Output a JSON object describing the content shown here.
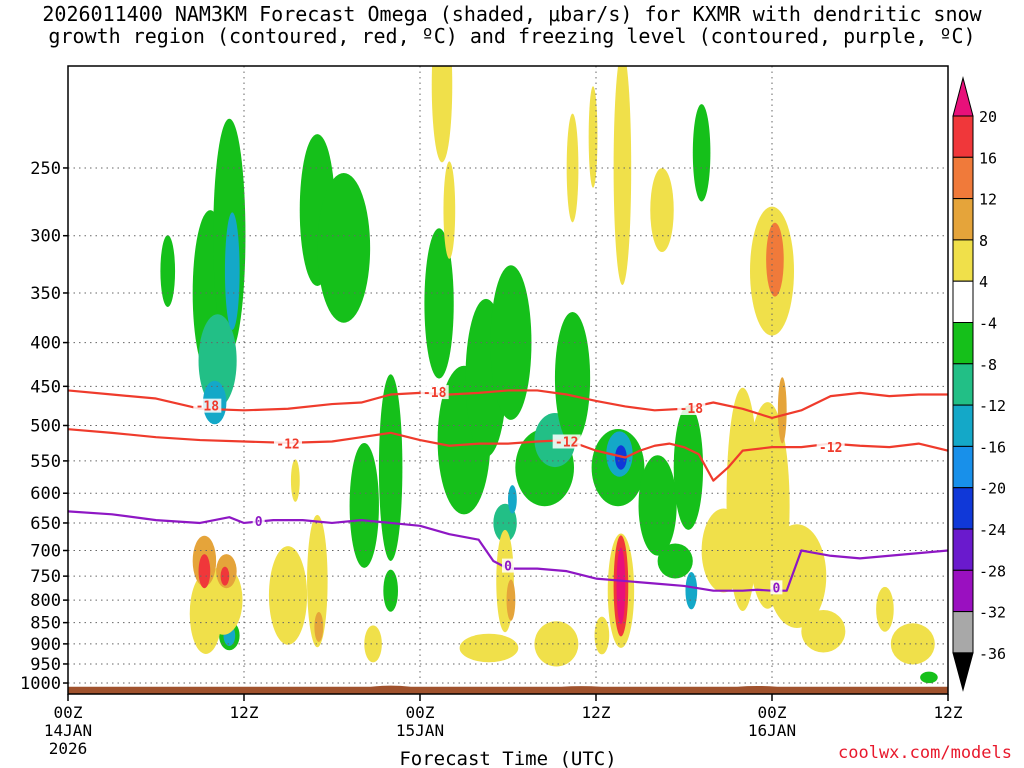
{
  "title": {
    "line1": "2026011400 NAM3KM Forecast Omega (shaded, μbar/s) for KXMR with dendritic snow",
    "line2": "growth region (contoured, red, ºC) and freezing level (contoured, purple, ºC)"
  },
  "credit": "coolwx.com/models",
  "colors": {
    "frame": "#000000",
    "grid": "#666666",
    "terrain": "#a0522d",
    "contour_red": "#ef3b2c",
    "contour_purple": "#8e17c4"
  },
  "chart_data": {
    "type": "heatmap",
    "title": "2026011400 NAM3KM Forecast Omega (shaded, μbar/s) for KXMR with dendritic snow growth region (contoured, red, ºC) and freezing level (contoured, purple, ºC)",
    "xlabel": "Forecast Time (UTC)",
    "ylabel": "",
    "xlim": [
      0,
      60
    ],
    "ylim": [
      1030,
      190
    ],
    "x_ticks": [
      {
        "hour": 0,
        "label": "00Z",
        "date": "14JAN",
        "year": "2026"
      },
      {
        "hour": 12,
        "label": "12Z",
        "date": "",
        "year": ""
      },
      {
        "hour": 24,
        "label": "00Z",
        "date": "15JAN",
        "year": ""
      },
      {
        "hour": 36,
        "label": "12Z",
        "date": "",
        "year": ""
      },
      {
        "hour": 48,
        "label": "00Z",
        "date": "16JAN",
        "year": ""
      },
      {
        "hour": 60,
        "label": "12Z",
        "date": "",
        "year": ""
      }
    ],
    "y_ticks": [
      250,
      300,
      350,
      400,
      450,
      500,
      550,
      600,
      650,
      700,
      750,
      800,
      850,
      900,
      950,
      1000
    ],
    "colorbar": {
      "labels": [
        "20",
        "16",
        "12",
        "8",
        "4",
        "-4",
        "-8",
        "-12",
        "-16",
        "-20",
        "-24",
        "-28",
        "-32",
        "-36"
      ],
      "top_arrow": "#e8107a",
      "bottom_arrow": "#000000",
      "bins": [
        "#f0373a",
        "#f07a3a",
        "#e5a43a",
        "#f0e04a",
        "#ffffff",
        "#15c01a",
        "#22bf86",
        "#14a8c8",
        "#1890ea",
        "#1038d8",
        "#6a1acd",
        "#9a10c0",
        "#a8a8a8"
      ]
    },
    "omega_blobs": [
      {
        "x": 6.8,
        "p": 330,
        "rx": 0.5,
        "ry": 60,
        "level": "-4"
      },
      {
        "x": 9.7,
        "p": 350,
        "rx": 1.2,
        "ry": 150,
        "level": "-4"
      },
      {
        "x": 11.0,
        "p": 300,
        "rx": 1.1,
        "ry": 180,
        "level": "-4"
      },
      {
        "x": 10.2,
        "p": 420,
        "rx": 1.3,
        "ry": 100,
        "level": "-8"
      },
      {
        "x": 11.2,
        "p": 330,
        "rx": 0.5,
        "ry": 100,
        "level": "-12"
      },
      {
        "x": 10.0,
        "p": 470,
        "rx": 0.8,
        "ry": 50,
        "level": "-12"
      },
      {
        "x": 17.0,
        "p": 280,
        "rx": 1.2,
        "ry": 110,
        "level": "-4"
      },
      {
        "x": 18.8,
        "p": 310,
        "rx": 1.8,
        "ry": 120,
        "level": "-4"
      },
      {
        "x": 20.2,
        "p": 620,
        "rx": 1.0,
        "ry": 200,
        "level": "-4"
      },
      {
        "x": 22.0,
        "p": 560,
        "rx": 0.8,
        "ry": 270,
        "level": "-4"
      },
      {
        "x": 25.3,
        "p": 360,
        "rx": 1.0,
        "ry": 140,
        "level": "-4"
      },
      {
        "x": 27.0,
        "p": 520,
        "rx": 1.8,
        "ry": 200,
        "level": "-4"
      },
      {
        "x": 28.5,
        "p": 440,
        "rx": 1.4,
        "ry": 180,
        "level": "-4"
      },
      {
        "x": 30.2,
        "p": 400,
        "rx": 1.4,
        "ry": 160,
        "level": "-4"
      },
      {
        "x": 32.5,
        "p": 560,
        "rx": 2.0,
        "ry": 110,
        "level": "-4"
      },
      {
        "x": 33.2,
        "p": 520,
        "rx": 1.4,
        "ry": 70,
        "level": "-8"
      },
      {
        "x": 34.4,
        "p": 440,
        "rx": 1.2,
        "ry": 150,
        "level": "-4"
      },
      {
        "x": 29.8,
        "p": 650,
        "rx": 0.8,
        "ry": 60,
        "level": "-8"
      },
      {
        "x": 30.3,
        "p": 610,
        "rx": 0.3,
        "ry": 40,
        "level": "-12"
      },
      {
        "x": 37.5,
        "p": 560,
        "rx": 1.8,
        "ry": 110,
        "level": "-4"
      },
      {
        "x": 37.6,
        "p": 540,
        "rx": 0.9,
        "ry": 60,
        "level": "-12"
      },
      {
        "x": 37.7,
        "p": 545,
        "rx": 0.4,
        "ry": 30,
        "level": "-20"
      },
      {
        "x": 40.2,
        "p": 620,
        "rx": 1.3,
        "ry": 160,
        "level": "-4"
      },
      {
        "x": 42.3,
        "p": 560,
        "rx": 1.0,
        "ry": 180,
        "level": "-4"
      },
      {
        "x": 42.5,
        "p": 780,
        "rx": 0.4,
        "ry": 70,
        "level": "-12"
      },
      {
        "x": 41.4,
        "p": 720,
        "rx": 1.2,
        "ry": 60,
        "level": "-4"
      },
      {
        "x": 43.2,
        "p": 240,
        "rx": 0.6,
        "ry": 60,
        "level": "-4"
      },
      {
        "x": 15.0,
        "p": 770,
        "rx": 0.8,
        "ry": 100,
        "level": "-4"
      },
      {
        "x": 15.0,
        "p": 770,
        "rx": 0.4,
        "ry": 60,
        "level": "-12"
      },
      {
        "x": 11.0,
        "p": 880,
        "rx": 0.7,
        "ry": 60,
        "level": "-4"
      },
      {
        "x": 11.0,
        "p": 880,
        "rx": 0.4,
        "ry": 40,
        "level": "-12"
      },
      {
        "x": 58.7,
        "p": 985,
        "rx": 0.6,
        "ry": 20,
        "level": "-4"
      },
      {
        "x": 22.0,
        "p": 780,
        "rx": 0.5,
        "ry": 80,
        "level": "-4"
      },
      {
        "x": 9.4,
        "p": 830,
        "rx": 1.1,
        "ry": 170,
        "level": "4"
      },
      {
        "x": 10.6,
        "p": 800,
        "rx": 1.3,
        "ry": 140,
        "level": "4"
      },
      {
        "x": 9.3,
        "p": 720,
        "rx": 0.8,
        "ry": 90,
        "level": "8"
      },
      {
        "x": 10.8,
        "p": 740,
        "rx": 0.7,
        "ry": 60,
        "level": "8"
      },
      {
        "x": 9.3,
        "p": 740,
        "rx": 0.4,
        "ry": 60,
        "level": "16"
      },
      {
        "x": 10.7,
        "p": 750,
        "rx": 0.3,
        "ry": 30,
        "level": "16"
      },
      {
        "x": 15.0,
        "p": 790,
        "rx": 1.3,
        "ry": 200,
        "level": "4"
      },
      {
        "x": 17.0,
        "p": 760,
        "rx": 0.7,
        "ry": 260,
        "level": "4"
      },
      {
        "x": 17.1,
        "p": 860,
        "rx": 0.3,
        "ry": 60,
        "level": "8"
      },
      {
        "x": 15.5,
        "p": 580,
        "rx": 0.3,
        "ry": 60,
        "level": "4"
      },
      {
        "x": 20.8,
        "p": 900,
        "rx": 0.6,
        "ry": 80,
        "level": "4"
      },
      {
        "x": 25.5,
        "p": 200,
        "rx": 0.7,
        "ry": 80,
        "level": "4"
      },
      {
        "x": 26.0,
        "p": 280,
        "rx": 0.4,
        "ry": 70,
        "level": "4"
      },
      {
        "x": 28.7,
        "p": 910,
        "rx": 2.0,
        "ry": 60,
        "level": "4"
      },
      {
        "x": 29.8,
        "p": 760,
        "rx": 0.6,
        "ry": 200,
        "level": "4"
      },
      {
        "x": 30.2,
        "p": 800,
        "rx": 0.3,
        "ry": 80,
        "level": "8"
      },
      {
        "x": 33.3,
        "p": 900,
        "rx": 1.5,
        "ry": 100,
        "level": "4"
      },
      {
        "x": 35.8,
        "p": 230,
        "rx": 0.3,
        "ry": 60,
        "level": "4"
      },
      {
        "x": 36.4,
        "p": 880,
        "rx": 0.5,
        "ry": 80,
        "level": "4"
      },
      {
        "x": 37.7,
        "p": 780,
        "rx": 0.9,
        "ry": 230,
        "level": "4"
      },
      {
        "x": 37.7,
        "p": 770,
        "rx": 0.5,
        "ry": 200,
        "level": "16"
      },
      {
        "x": 37.7,
        "p": 770,
        "rx": 0.3,
        "ry": 150,
        "level": "20"
      },
      {
        "x": 37.8,
        "p": 250,
        "rx": 0.6,
        "ry": 150,
        "level": "4"
      },
      {
        "x": 34.4,
        "p": 250,
        "rx": 0.4,
        "ry": 70,
        "level": "4"
      },
      {
        "x": 40.5,
        "p": 280,
        "rx": 0.8,
        "ry": 60,
        "level": "4"
      },
      {
        "x": 44.7,
        "p": 700,
        "rx": 1.5,
        "ry": 150,
        "level": "4"
      },
      {
        "x": 46.0,
        "p": 610,
        "rx": 1.1,
        "ry": 350,
        "level": "4"
      },
      {
        "x": 47.7,
        "p": 620,
        "rx": 1.5,
        "ry": 330,
        "level": "4"
      },
      {
        "x": 48.0,
        "p": 330,
        "rx": 1.5,
        "ry": 110,
        "level": "4"
      },
      {
        "x": 48.2,
        "p": 320,
        "rx": 0.6,
        "ry": 60,
        "level": "12"
      },
      {
        "x": 49.7,
        "p": 750,
        "rx": 2.0,
        "ry": 200,
        "level": "4"
      },
      {
        "x": 51.5,
        "p": 870,
        "rx": 1.5,
        "ry": 90,
        "level": "4"
      },
      {
        "x": 48.7,
        "p": 480,
        "rx": 0.3,
        "ry": 80,
        "level": "8"
      },
      {
        "x": 57.6,
        "p": 900,
        "rx": 1.5,
        "ry": 90,
        "level": "4"
      },
      {
        "x": 55.7,
        "p": 820,
        "rx": 0.6,
        "ry": 90,
        "level": "4"
      }
    ],
    "contours": [
      {
        "name": "-18C",
        "label": "-18",
        "color": "#ef3b2c",
        "x": [
          0,
          3,
          6,
          9,
          12,
          15,
          18,
          20,
          22,
          24,
          26,
          28,
          30,
          32,
          34,
          36,
          38,
          40,
          42,
          44,
          46,
          48,
          50,
          52,
          54,
          56,
          58,
          60
        ],
        "p": [
          455,
          460,
          465,
          478,
          480,
          478,
          472,
          470,
          460,
          458,
          460,
          458,
          455,
          455,
          460,
          468,
          475,
          480,
          478,
          470,
          478,
          490,
          480,
          462,
          458,
          462,
          460,
          460
        ],
        "label_pos": [
          [
            9.5,
            474
          ],
          [
            25.0,
            457
          ],
          [
            42.5,
            477
          ]
        ]
      },
      {
        "name": "-12C",
        "label": "-12",
        "color": "#ef3b2c",
        "x": [
          0,
          3,
          6,
          9,
          12,
          15,
          18,
          20,
          22,
          24,
          26,
          28,
          30,
          32,
          34,
          36,
          38,
          39,
          40,
          41,
          42,
          43,
          44,
          45,
          46,
          48,
          50,
          52,
          54,
          56,
          58,
          60
        ],
        "p": [
          505,
          510,
          516,
          520,
          522,
          524,
          522,
          516,
          510,
          520,
          528,
          525,
          525,
          522,
          520,
          535,
          545,
          535,
          528,
          525,
          530,
          540,
          580,
          560,
          535,
          530,
          530,
          525,
          528,
          530,
          525,
          535
        ],
        "label_pos": [
          [
            15.0,
            525
          ],
          [
            34.0,
            522
          ],
          [
            52.0,
            530
          ]
        ]
      },
      {
        "name": "0C",
        "label": "0",
        "color": "#8e17c4",
        "x": [
          0,
          3,
          6,
          9,
          11,
          12,
          14,
          16,
          18,
          20,
          22,
          24,
          26,
          28,
          29,
          30,
          32,
          34,
          36,
          38,
          40,
          42,
          44,
          46,
          47,
          48,
          49,
          50,
          51,
          52,
          54,
          56,
          58,
          60
        ],
        "p": [
          630,
          635,
          645,
          650,
          640,
          650,
          645,
          645,
          650,
          645,
          650,
          655,
          670,
          680,
          720,
          735,
          735,
          740,
          755,
          760,
          765,
          770,
          780,
          780,
          778,
          780,
          780,
          700,
          705,
          710,
          715,
          710,
          705,
          700
        ],
        "label_pos": [
          [
            13.0,
            647
          ],
          [
            30.0,
            729
          ],
          [
            48.3,
            773
          ]
        ]
      }
    ],
    "terrain": {
      "p_top": 1010,
      "bumps": [
        [
          22,
          1004
        ],
        [
          35,
          1007
        ],
        [
          47,
          1006
        ]
      ]
    }
  }
}
